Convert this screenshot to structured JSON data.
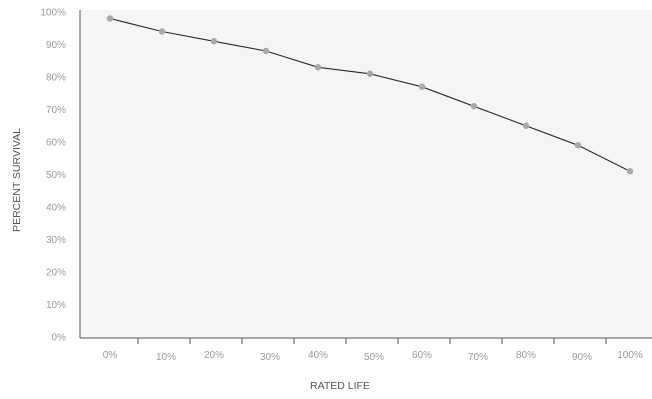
{
  "chart_data": {
    "type": "line",
    "title": "",
    "xlabel": "RATED LIFE",
    "ylabel": "PERCENT SURVIVAL",
    "x_tick_labels": [
      "0%",
      "10%",
      "20%",
      "30%",
      "40%",
      "50%",
      "60%",
      "70%",
      "80%",
      "90%",
      "100%"
    ],
    "y_tick_labels": [
      "0%",
      "10%",
      "20%",
      "30%",
      "40%",
      "50%",
      "60%",
      "70%",
      "80%",
      "90%",
      "100%"
    ],
    "xlim": [
      0,
      100
    ],
    "ylim": [
      0,
      100
    ],
    "grid": false,
    "legend": "none",
    "series": [
      {
        "x": [
          0,
          10,
          20,
          30,
          40,
          50,
          60,
          70,
          80,
          90,
          100
        ],
        "y": [
          98,
          94,
          91,
          88,
          83,
          81,
          77,
          71,
          65,
          59,
          51
        ]
      }
    ]
  },
  "colors": {
    "plot_background": "#f4f5f4",
    "line": "#2b2b2b",
    "marker": "#a7a8a7",
    "axis": "#555555",
    "tick_label": "#9a9a9a",
    "axis_title": "#555555"
  }
}
